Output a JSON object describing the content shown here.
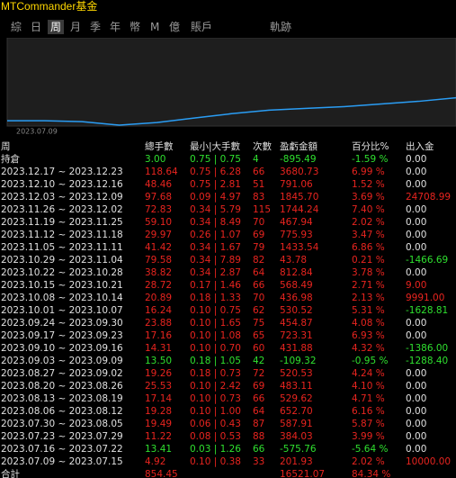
{
  "header": {
    "title": "MTCommander基金"
  },
  "tabs": {
    "items": [
      "綜",
      "日",
      "周",
      "月",
      "季",
      "年",
      "幣",
      "M",
      "億",
      "賬戶",
      "軌跡"
    ],
    "selected": "周"
  },
  "equity_chart": {
    "date_label": "2023.07.09",
    "values": [
      6,
      6,
      5,
      1,
      4,
      9,
      14,
      18,
      20,
      22,
      25,
      28,
      32
    ],
    "ylim": [
      0,
      100
    ]
  },
  "table": {
    "header": [
      "周",
      "總手數",
      "最小|大手數",
      "次數",
      "盈虧金額",
      "百分比%",
      "出入金"
    ],
    "holding": [
      "持倉",
      "3.00",
      "0.75 | 0.75",
      "4",
      "-895.49",
      "-1.59 %",
      "0.00"
    ],
    "rows": [
      [
        "2023.12.17 ~ 2023.12.23",
        "118.64",
        "0.75 | 6.28",
        "66",
        "3680.73",
        "6.99 %",
        "0.00"
      ],
      [
        "2023.12.10 ~ 2023.12.16",
        "48.46",
        "0.75 | 2.81",
        "51",
        "791.06",
        "1.52 %",
        "0.00"
      ],
      [
        "2023.12.03 ~ 2023.12.09",
        "97.68",
        "0.09 | 4.97",
        "83",
        "1845.70",
        "3.69 %",
        "24708.99"
      ],
      [
        "2023.11.26 ~ 2023.12.02",
        "72.83",
        "0.34 | 5.79",
        "115",
        "1744.24",
        "7.40 %",
        "0.00"
      ],
      [
        "2023.11.19 ~ 2023.11.25",
        "59.10",
        "0.34 | 8.49",
        "70",
        "467.94",
        "2.02 %",
        "0.00"
      ],
      [
        "2023.11.12 ~ 2023.11.18",
        "29.97",
        "0.26 | 1.07",
        "69",
        "775.93",
        "3.47 %",
        "0.00"
      ],
      [
        "2023.11.05 ~ 2023.11.11",
        "41.42",
        "0.34 | 1.67",
        "79",
        "1433.54",
        "6.86 %",
        "0.00"
      ],
      [
        "2023.10.29 ~ 2023.11.04",
        "79.58",
        "0.34 | 7.89",
        "82",
        "43.78",
        "0.21 %",
        "-1466.69"
      ],
      [
        "2023.10.22 ~ 2023.10.28",
        "38.82",
        "0.34 | 2.87",
        "64",
        "812.84",
        "3.78 %",
        "0.00"
      ],
      [
        "2023.10.15 ~ 2023.10.21",
        "28.72",
        "0.17 | 1.46",
        "66",
        "568.49",
        "2.71 %",
        "9.00"
      ],
      [
        "2023.10.08 ~ 2023.10.14",
        "20.89",
        "0.18 | 1.33",
        "70",
        "436.98",
        "2.13 %",
        "9991.00"
      ],
      [
        "2023.10.01 ~ 2023.10.07",
        "16.24",
        "0.10 | 0.75",
        "62",
        "530.52",
        "5.31 %",
        "-1628.81"
      ],
      [
        "2023.09.24 ~ 2023.09.30",
        "23.88",
        "0.10 | 1.65",
        "75",
        "454.87",
        "4.08 %",
        "0.00"
      ],
      [
        "2023.09.17 ~ 2023.09.23",
        "17.16",
        "0.10 | 1.08",
        "65",
        "723.31",
        "6.93 %",
        "0.00"
      ],
      [
        "2023.09.10 ~ 2023.09.16",
        "14.31",
        "0.10 | 0.70",
        "60",
        "431.88",
        "4.32 %",
        "-1386.00"
      ],
      [
        "2023.09.03 ~ 2023.09.09",
        "13.50",
        "0.18 | 1.05",
        "42",
        "-109.32",
        "-0.95 %",
        "-1288.40"
      ],
      [
        "2023.08.27 ~ 2023.09.02",
        "19.26",
        "0.18 | 0.73",
        "72",
        "520.53",
        "4.24 %",
        "0.00"
      ],
      [
        "2023.08.20 ~ 2023.08.26",
        "25.53",
        "0.10 | 2.42",
        "69",
        "483.11",
        "4.10 %",
        "0.00"
      ],
      [
        "2023.08.13 ~ 2023.08.19",
        "17.14",
        "0.10 | 0.73",
        "66",
        "529.62",
        "4.71 %",
        "0.00"
      ],
      [
        "2023.08.06 ~ 2023.08.12",
        "19.28",
        "0.10 | 1.00",
        "64",
        "652.70",
        "6.16 %",
        "0.00"
      ],
      [
        "2023.07.30 ~ 2023.08.05",
        "19.49",
        "0.06 | 0.43",
        "87",
        "587.91",
        "5.87 %",
        "0.00"
      ],
      [
        "2023.07.23 ~ 2023.07.29",
        "11.22",
        "0.08 | 0.53",
        "88",
        "384.03",
        "3.99 %",
        "0.00"
      ],
      [
        "2023.07.16 ~ 2023.07.22",
        "13.41",
        "0.03 | 1.26",
        "66",
        "-575.76",
        "-5.64 %",
        "0.00"
      ],
      [
        "2023.07.09 ~ 2023.07.15",
        "4.92",
        "0.10 | 0.38",
        "33",
        "201.93",
        "2.02 %",
        "10000.00"
      ]
    ],
    "total": [
      "合計",
      "854.45",
      "16521.07",
      "84.34 %"
    ]
  }
}
